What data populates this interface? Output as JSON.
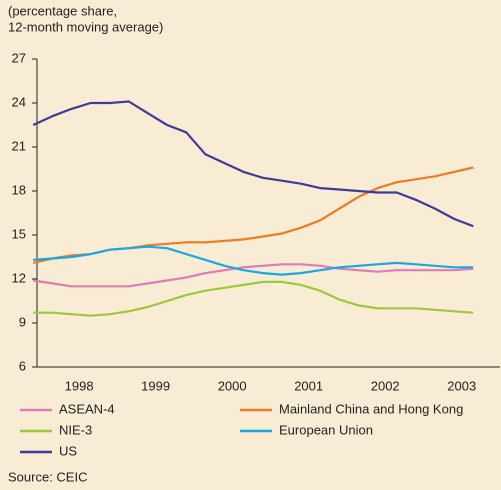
{
  "chart_data": {
    "type": "line",
    "ylabel": [
      "(percentage share,",
      "12-month moving average)"
    ],
    "source": "Source: CEIC",
    "x": [
      1997.9,
      1998.15,
      1998.4,
      1998.65,
      1998.9,
      1999.15,
      1999.4,
      1999.65,
      1999.9,
      2000.15,
      2000.4,
      2000.65,
      2000.9,
      2001.15,
      2001.4,
      2001.65,
      2001.9,
      2002.15,
      2002.4,
      2002.65,
      2002.9,
      2003.15,
      2003.4,
      2003.65
    ],
    "xlim": [
      1997.95,
      2004
    ],
    "xticks": [
      {
        "value": 1998.5,
        "label": "1998"
      },
      {
        "value": 1999.5,
        "label": "1999"
      },
      {
        "value": 2000.5,
        "label": "2000"
      },
      {
        "value": 2001.5,
        "label": "2001"
      },
      {
        "value": 2002.5,
        "label": "2002"
      },
      {
        "value": 2003.5,
        "label": "2003"
      }
    ],
    "ylim": [
      6,
      27
    ],
    "yticks": [
      6,
      9,
      12,
      15,
      18,
      21,
      24,
      27
    ],
    "series": [
      {
        "name": "ASEAN-4",
        "color": "#e07bb4",
        "values": [
          11.9,
          11.7,
          11.5,
          11.5,
          11.5,
          11.5,
          11.7,
          11.9,
          12.1,
          12.4,
          12.6,
          12.8,
          12.9,
          13.0,
          13.0,
          12.9,
          12.7,
          12.6,
          12.5,
          12.6,
          12.6,
          12.6,
          12.6,
          12.7
        ]
      },
      {
        "name": "Mainland China and Hong Kong",
        "color": "#f07a22",
        "values": [
          13.1,
          13.4,
          13.6,
          13.7,
          14.0,
          14.1,
          14.3,
          14.4,
          14.5,
          14.5,
          14.6,
          14.7,
          14.9,
          15.1,
          15.5,
          16.0,
          16.8,
          17.6,
          18.2,
          18.6,
          18.8,
          19.0,
          19.3,
          19.6
        ]
      },
      {
        "name": "NIE-3",
        "color": "#9cc83c",
        "values": [
          9.7,
          9.7,
          9.6,
          9.5,
          9.6,
          9.8,
          10.1,
          10.5,
          10.9,
          11.2,
          11.4,
          11.6,
          11.8,
          11.8,
          11.6,
          11.2,
          10.6,
          10.2,
          10.0,
          10.0,
          10.0,
          9.9,
          9.8,
          9.7
        ]
      },
      {
        "name": "European Union",
        "color": "#1ba8e0",
        "values": [
          13.3,
          13.4,
          13.5,
          13.7,
          14.0,
          14.1,
          14.2,
          14.1,
          13.7,
          13.3,
          12.9,
          12.6,
          12.4,
          12.3,
          12.4,
          12.6,
          12.8,
          12.9,
          13.0,
          13.1,
          13.0,
          12.9,
          12.8,
          12.8
        ]
      },
      {
        "name": "US",
        "color": "#3c3c96",
        "values": [
          22.5,
          23.1,
          23.6,
          24.0,
          24.0,
          24.1,
          23.3,
          22.5,
          22.0,
          20.5,
          19.9,
          19.3,
          18.9,
          18.7,
          18.5,
          18.2,
          18.1,
          18.0,
          17.9,
          17.9,
          17.4,
          16.8,
          16.1,
          15.6
        ]
      }
    ],
    "grid": false
  }
}
